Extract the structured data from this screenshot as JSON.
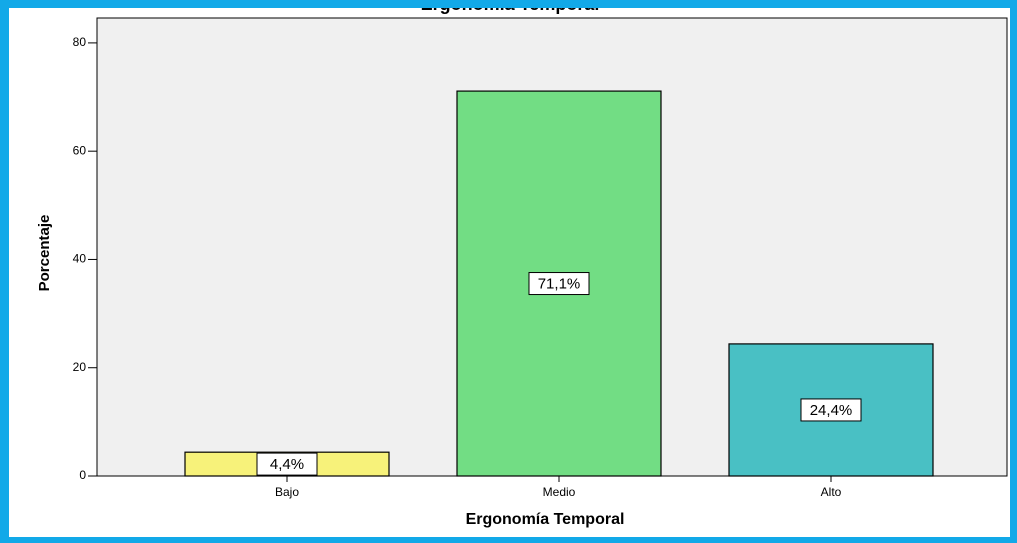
{
  "chart_data": {
    "type": "bar",
    "title": "Ergonomía Temporal",
    "x_label": "Ergonomía Temporal",
    "y_label": "Porcentaje",
    "categories": [
      "Bajo",
      "Medio",
      "Alto"
    ],
    "values": [
      4.4,
      71.1,
      24.4
    ],
    "value_labels": [
      "4,4%",
      "71,1%",
      "24,4%"
    ],
    "colors": [
      "#f7f27a",
      "#72dd84",
      "#49c0c4"
    ],
    "ylim": [
      0,
      84.6
    ],
    "yticks": [
      0,
      20,
      40,
      60,
      80
    ]
  }
}
